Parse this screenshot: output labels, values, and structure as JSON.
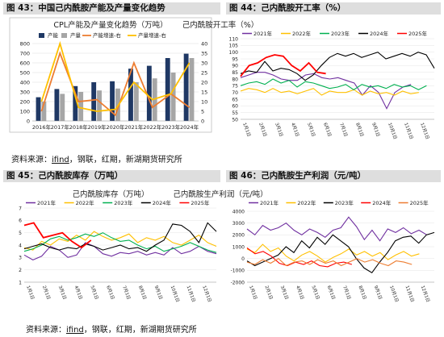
{
  "panels": {
    "p43": {
      "header": "图 43：中国己内酰胺产能及产量变化趋势"
    },
    "p44": {
      "header": "图 44：己内酰胺开工率（%）"
    },
    "p45": {
      "header": "图 45：己内酰胺库存（万吨）"
    },
    "p46": {
      "header": "图 46：己内酰胺生产利润（元/吨）"
    }
  },
  "sources": {
    "top": {
      "prefix": "资料来源：",
      "link": "ifind",
      "rest": "，钢联，红期，新湖期货研究所"
    },
    "bottom": {
      "prefix": "资料来源：",
      "link": "ifind",
      "rest": "，钢联，红期，新湖期货研究所"
    }
  },
  "colors": {
    "header_bg": "#dedede",
    "y2021": "#7030a0",
    "y2022": "#ffc000",
    "y2023": "#00b050",
    "y2024": "#000000",
    "y2025": "#ff0000"
  },
  "chart_data": [
    {
      "id": "p43",
      "type": "bar",
      "title": "CPL产能及产量变化趋势（万吨）",
      "categories": [
        "2016年",
        "2017年",
        "2018年",
        "2019年",
        "2020年",
        "2021年",
        "2022年",
        "2023年",
        "2024年"
      ],
      "series": [
        {
          "name": "产能",
          "kind": "bar",
          "color": "#1f3864",
          "values": [
            245,
            330,
            360,
            400,
            410,
            540,
            570,
            650,
            695
          ]
        },
        {
          "name": "产量",
          "kind": "bar",
          "color": "#a6a6a6",
          "values": [
            200,
            280,
            300,
            315,
            335,
            400,
            440,
            500,
            650
          ]
        },
        {
          "name": "产能增速-右",
          "kind": "line",
          "axis": "right",
          "color": "#ed7d31",
          "values": [
            5,
            35,
            10,
            11,
            3,
            30,
            7,
            14,
            7
          ]
        },
        {
          "name": "产量增速-右",
          "kind": "line",
          "axis": "right",
          "color": "#ffc000",
          "values": [
            10,
            40,
            7,
            5,
            6,
            20,
            11,
            14,
            30
          ]
        }
      ],
      "ylim": [
        0,
        800
      ],
      "yticks": [
        0,
        100,
        200,
        300,
        400,
        500,
        600,
        700,
        800
      ],
      "y2lim": [
        0,
        40
      ],
      "y2ticks": [
        0,
        5,
        10,
        15,
        20,
        25,
        30,
        35,
        40
      ],
      "legend": "top"
    },
    {
      "id": "p44",
      "type": "line",
      "title": "己内酰胺开工率（%）",
      "xticks": [
        "1月1日",
        "2月1日",
        "3月1日",
        "4月1日",
        "5月1日",
        "6月1日",
        "7月1日",
        "8月1日",
        "9月1日",
        "10月1日",
        "11月1日",
        "12月1日"
      ],
      "ylim": [
        50,
        110
      ],
      "yticks": [
        50,
        55,
        60,
        65,
        70,
        75,
        80,
        85,
        90,
        95,
        100,
        105,
        110
      ],
      "series": [
        {
          "name": "2021年",
          "color": "#7030a0",
          "values": [
            81,
            83,
            85,
            85,
            83,
            80,
            79,
            79,
            83,
            84,
            81,
            80,
            81,
            79,
            77,
            68,
            75,
            70,
            58,
            70,
            74,
            76
          ]
        },
        {
          "name": "2022年",
          "color": "#ffc000",
          "values": [
            71,
            73,
            72,
            70,
            73,
            70,
            71,
            69,
            71,
            73,
            68,
            71,
            70,
            70,
            72,
            68,
            71,
            69,
            70,
            68,
            71,
            69,
            70
          ]
        },
        {
          "name": "2023年",
          "color": "#00b050",
          "values": [
            75,
            77,
            78,
            76,
            80,
            77,
            79,
            74,
            78,
            77,
            75,
            73,
            74,
            76,
            72,
            76,
            74,
            75,
            73,
            76,
            74,
            75,
            72,
            75
          ]
        },
        {
          "name": "2024年",
          "color": "#000000",
          "values": [
            84,
            86,
            85,
            93,
            86,
            88,
            87,
            84,
            79,
            83,
            90,
            96,
            99,
            97,
            99,
            96,
            98,
            100,
            95,
            97,
            99,
            97,
            100,
            98,
            88
          ]
        },
        {
          "name": "2025年",
          "color": "#ff0000",
          "values": [
            82,
            90,
            92,
            96,
            98,
            97,
            90,
            86,
            92,
            85,
            84
          ]
        }
      ],
      "legend": "top"
    },
    {
      "id": "p45",
      "type": "line",
      "title": "己内酰胺库存（万吨）",
      "xticks": [
        "1月1日",
        "2月1日",
        "3月1日",
        "4月1日",
        "5月1日",
        "6月1日",
        "7月1日",
        "8月1日",
        "9月1日",
        "10月1日",
        "11月1日",
        "12月1日"
      ],
      "ylim": [
        1,
        7
      ],
      "yticks": [
        1,
        2,
        3,
        4,
        5,
        6,
        7
      ],
      "series": [
        {
          "name": "2021年",
          "color": "#7030a0",
          "values": [
            3.2,
            2.8,
            3.1,
            3.9,
            3.6,
            3.0,
            3.2,
            4.2,
            3.9,
            3.3,
            3.1,
            3.4,
            3.3,
            3.5,
            3.2,
            3.4,
            3.2,
            3.8,
            3.3,
            3.5,
            3.9,
            3.5,
            3.3
          ]
        },
        {
          "name": "2022年",
          "color": "#ffc000",
          "values": [
            3.8,
            3.6,
            4.3,
            4.0,
            4.5,
            4.3,
            4.8,
            4.4,
            5.1,
            4.7,
            4.4,
            4.6,
            4.9,
            4.2,
            4.6,
            4.4,
            4.7,
            4.2,
            4.0,
            4.4,
            4.8,
            4.2,
            3.9
          ]
        },
        {
          "name": "2023年",
          "color": "#00b050",
          "values": [
            3.5,
            3.7,
            4.0,
            4.5,
            4.7,
            4.4,
            4.6,
            4.9,
            4.7,
            5.0,
            4.6,
            4.3,
            4.4,
            4.0,
            3.7,
            3.9,
            3.5,
            3.7,
            3.9,
            4.2,
            3.9,
            3.6,
            3.4
          ]
        },
        {
          "name": "2024年",
          "color": "#000000",
          "values": [
            3.7,
            3.9,
            4.1,
            3.8,
            3.6,
            3.8,
            3.7,
            4.1,
            3.9,
            3.6,
            3.8,
            4.0,
            3.7,
            3.8,
            3.5,
            4.0,
            4.4,
            5.7,
            5.6,
            5.1,
            4.2,
            5.8,
            5.1
          ]
        },
        {
          "name": "2025年",
          "color": "#ff0000",
          "values": [
            5.6,
            5.8,
            4.6,
            4.8,
            5.0,
            4.3,
            3.8,
            4.4
          ]
        }
      ],
      "legend": "top"
    },
    {
      "id": "p46",
      "type": "line",
      "title": "己内酰胺生产利润（元/吨）",
      "xticks": [
        "1月1日",
        "2月1日",
        "3月1日",
        "4月1日",
        "5月1日",
        "6月1日",
        "7月1日",
        "8月1日",
        "9月1日",
        "10月1日",
        "11月1日",
        "12月1日"
      ],
      "ylim": [
        -2000,
        4000
      ],
      "yticks": [
        -2000,
        -1000,
        0,
        1000,
        2000,
        3000,
        4000
      ],
      "series": [
        {
          "name": "2021年",
          "color": "#7030a0",
          "values": [
            2500,
            2000,
            2800,
            2400,
            2600,
            3000,
            2400,
            2000,
            2500,
            2200,
            1800,
            2400,
            2600,
            3500,
            2700,
            1600,
            2400,
            1500,
            2500,
            2200,
            2600,
            2100,
            2400,
            2000
          ]
        },
        {
          "name": "2022年",
          "color": "#ffc000",
          "values": [
            800,
            500,
            1200,
            600,
            900,
            200,
            -200,
            300,
            600,
            200,
            -300,
            100,
            400,
            800,
            300,
            600,
            200,
            500,
            -100,
            300,
            600,
            200,
            400
          ]
        },
        {
          "name": "2023年",
          "color": "#000000",
          "values": [
            -200,
            -600,
            -300,
            0,
            300,
            1000,
            500,
            1500,
            900,
            1800,
            1200,
            2000,
            1500,
            1000,
            0,
            -800,
            -1200,
            -300,
            500,
            1500,
            1800,
            1900,
            1300,
            2000,
            2200
          ]
        },
        {
          "name": "2024年",
          "color": "#ff0000",
          "values": [
            900,
            400,
            600,
            200,
            -400,
            -600,
            -300,
            -500,
            -200,
            -600,
            -700,
            -400,
            -300,
            -500
          ]
        },
        {
          "name": "2025年",
          "color": "#ed7d31",
          "values": [
            -300,
            -500,
            -100,
            -400,
            0,
            -600,
            -300,
            -200,
            -500,
            -100,
            -400,
            -200,
            -600,
            -300,
            0,
            -300,
            -100,
            -400,
            -600,
            -200,
            -300,
            -500
          ]
        }
      ],
      "legend": "top"
    }
  ]
}
